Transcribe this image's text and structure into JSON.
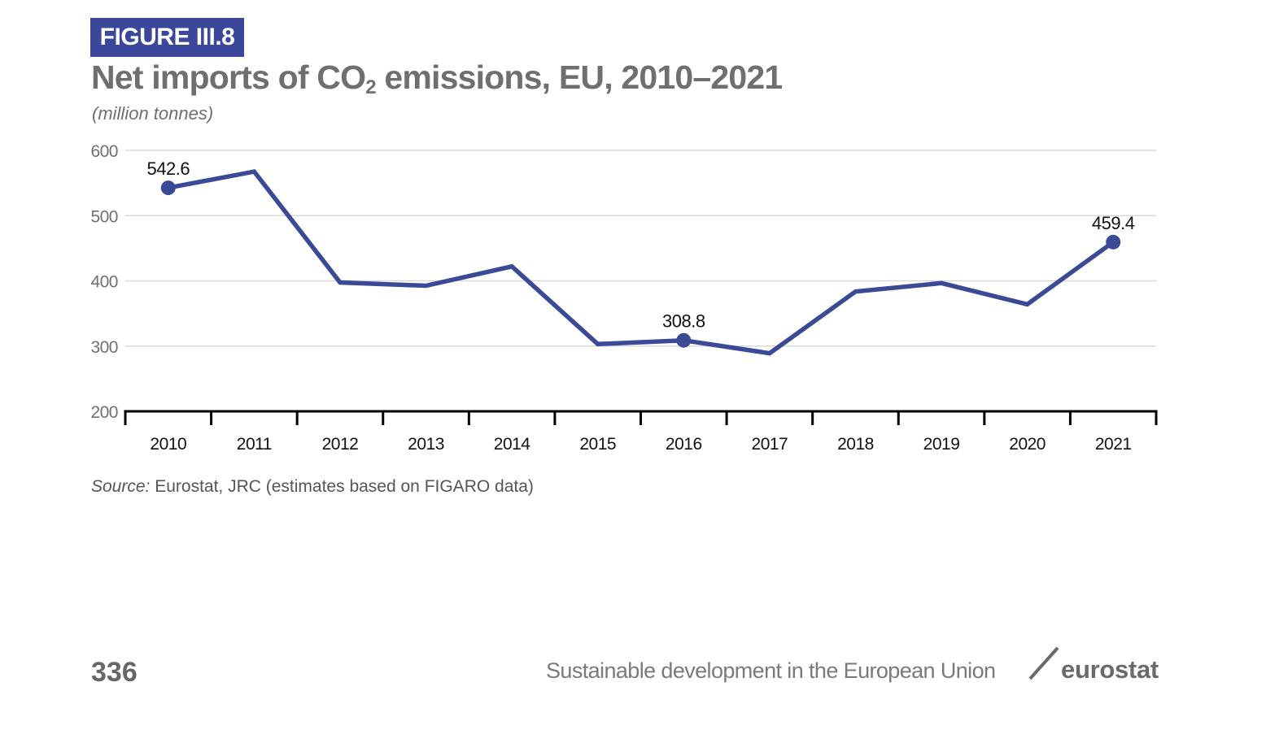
{
  "figure_label": "FIGURE III.8",
  "title": {
    "main": "Net imports of CO",
    "subscript": "2",
    "rest": " emissions, EU, 2010–2021"
  },
  "subtitle": "(million tonnes)",
  "source": {
    "label": "Source:",
    "text": " Eurostat, JRC (estimates based on FIGARO data)"
  },
  "footer": {
    "page_number": "336",
    "publication": "Sustainable development in the European Union",
    "brand": "eurostat",
    "brand_icon": "slash-icon"
  },
  "colors": {
    "accent": "#3b479b",
    "line": "#3b4a96",
    "grid": "#d9d9d9",
    "axis": "#000000",
    "tick_label": "#707070",
    "title": "#6f6f6f"
  },
  "chart_data": {
    "type": "line",
    "title": "Net imports of CO2 emissions, EU, 2010–2021",
    "subtitle": "(million tonnes)",
    "xlabel": "",
    "ylabel": "",
    "categories": [
      "2010",
      "2011",
      "2012",
      "2013",
      "2014",
      "2015",
      "2016",
      "2017",
      "2018",
      "2019",
      "2020",
      "2021"
    ],
    "series": [
      {
        "name": "Net imports of CO2 emissions",
        "values": [
          542.6,
          567.5,
          397.5,
          392.5,
          422.0,
          303.0,
          308.8,
          289.0,
          383.5,
          396.5,
          364.0,
          459.4
        ]
      }
    ],
    "labeled_points": [
      {
        "category": "2010",
        "label": "542.6"
      },
      {
        "category": "2016",
        "label": "308.8"
      },
      {
        "category": "2021",
        "label": "459.4"
      }
    ],
    "yticks": [
      200,
      300,
      400,
      500,
      600
    ],
    "ylim": [
      200,
      600
    ],
    "grid": true,
    "legend": "none"
  }
}
